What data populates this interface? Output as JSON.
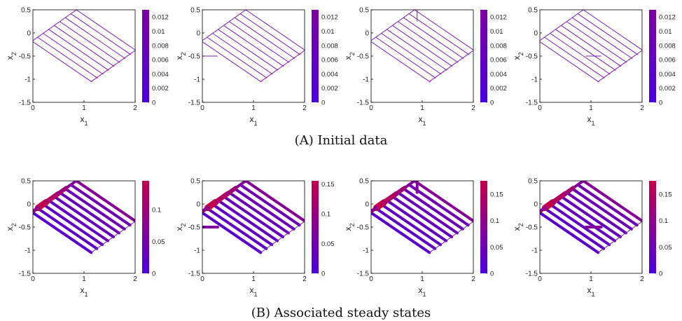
{
  "figure": {
    "caption_a": "(A) Initial data",
    "caption_b": "(B) Associated steady states"
  },
  "axes": {
    "xlabel": "x1",
    "ylabel": "x2",
    "xlim": [
      0,
      2
    ],
    "ylim": [
      -1.5,
      0.5
    ],
    "xticks": [
      "0",
      "1",
      "2"
    ],
    "yticks": [
      "0.5",
      "0",
      "-0.5",
      "-1",
      "-1.5"
    ]
  },
  "colors": {
    "colormap_low": "#4a00e0",
    "colormap_high": "#c4004a",
    "initial_line": "#7a1fb8",
    "initial_highlight": "#d01870",
    "axis": "#000000",
    "background": "#ffffff"
  },
  "chart_data": [
    {
      "id": "A1",
      "row": "A",
      "type": "heatmap",
      "xlim": [
        0,
        2
      ],
      "ylim": [
        -1.5,
        0.5
      ],
      "colorbar": {
        "ticks": [
          "0.012",
          "0.01",
          "0.008",
          "0.006",
          "0.004",
          "0.002",
          "0"
        ],
        "max": 0.013
      },
      "perturbation": null
    },
    {
      "id": "A2",
      "row": "A",
      "type": "heatmap",
      "xlim": [
        0,
        2
      ],
      "ylim": [
        -1.5,
        0.5
      ],
      "colorbar": {
        "ticks": [
          "0.012",
          "0.01",
          "0.008",
          "0.006",
          "0.004",
          "0.002",
          "0"
        ],
        "max": 0.013
      },
      "perturbation": {
        "x": [
          0,
          0.3
        ],
        "y": [
          -0.5,
          -0.5
        ]
      }
    },
    {
      "id": "A3",
      "row": "A",
      "type": "heatmap",
      "xlim": [
        0,
        2
      ],
      "ylim": [
        -1.5,
        0.5
      ],
      "colorbar": {
        "ticks": [
          "0.012",
          "0.01",
          "0.008",
          "0.006",
          "0.004",
          "0.002",
          "0"
        ],
        "max": 0.013
      },
      "perturbation": {
        "x": [
          0.9,
          0.9
        ],
        "y": [
          0.5,
          0.25
        ]
      }
    },
    {
      "id": "A4",
      "row": "A",
      "type": "heatmap",
      "xlim": [
        0,
        2
      ],
      "ylim": [
        -1.5,
        0.5
      ],
      "colorbar": {
        "ticks": [
          "0.012",
          "0.01",
          "0.008",
          "0.006",
          "0.004",
          "0.002",
          "0"
        ],
        "max": 0.013
      },
      "perturbation": {
        "x": [
          0.9,
          1.2
        ],
        "y": [
          -0.5,
          -0.5
        ]
      }
    },
    {
      "id": "B1",
      "row": "B",
      "type": "heatmap",
      "xlim": [
        0,
        2
      ],
      "ylim": [
        -1.5,
        0.5
      ],
      "colorbar": {
        "ticks": [
          "0.1",
          "0.05",
          "0"
        ],
        "max": 0.145
      },
      "perturbation": null
    },
    {
      "id": "B2",
      "row": "B",
      "type": "heatmap",
      "xlim": [
        0,
        2
      ],
      "ylim": [
        -1.5,
        0.5
      ],
      "colorbar": {
        "ticks": [
          "0.15",
          "0.1",
          "0.05",
          "0"
        ],
        "max": 0.155
      },
      "perturbation": {
        "x": [
          0,
          0.3
        ],
        "y": [
          -0.5,
          -0.5
        ]
      }
    },
    {
      "id": "B3",
      "row": "B",
      "type": "heatmap",
      "xlim": [
        0,
        2
      ],
      "ylim": [
        -1.5,
        0.5
      ],
      "colorbar": {
        "ticks": [
          "0.15",
          "0.1",
          "0.05",
          "0"
        ],
        "max": 0.175
      },
      "perturbation": {
        "x": [
          0.9,
          0.9
        ],
        "y": [
          0.5,
          0.25
        ]
      }
    },
    {
      "id": "B4",
      "row": "B",
      "type": "heatmap",
      "xlim": [
        0,
        2
      ],
      "ylim": [
        -1.5,
        0.5
      ],
      "colorbar": {
        "ticks": [
          "0.15",
          "0.1",
          "0.05",
          "0"
        ],
        "max": 0.175
      },
      "perturbation": {
        "x": [
          0.9,
          1.2
        ],
        "y": [
          -0.5,
          -0.5
        ]
      }
    }
  ]
}
